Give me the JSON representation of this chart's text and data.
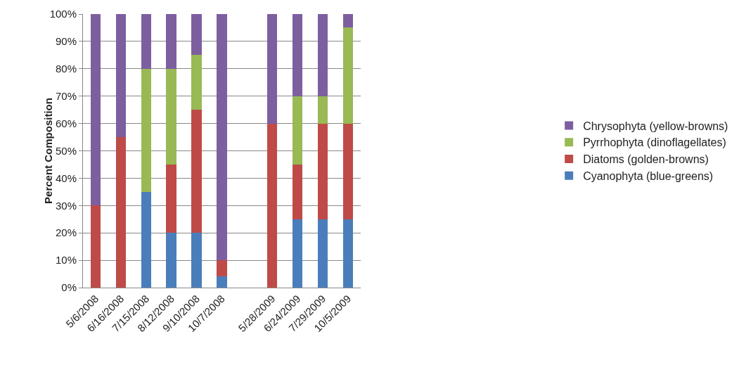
{
  "chart_data": {
    "type": "bar",
    "stacked": true,
    "ylabel": "Percent Composition",
    "categories": [
      "5/6/2008",
      "6/16/2008",
      "7/15/2008",
      "8/12/2008",
      "9/10/2008",
      "10/7/2008",
      null,
      "5/28/2009",
      "6/24/2009",
      "7/29/2009",
      "10/5/2009"
    ],
    "series": [
      {
        "name": "Cyanophyta (blue-greens)",
        "color": "#4a7ebb",
        "values": [
          0,
          0,
          35,
          20,
          20,
          4,
          null,
          0,
          25,
          25,
          25
        ]
      },
      {
        "name": "Diatoms (golden-browns)",
        "color": "#be4b48",
        "values": [
          30,
          55,
          0,
          25,
          45,
          6,
          null,
          60,
          20,
          35,
          35
        ]
      },
      {
        "name": "Pyrrhophyta (dinoflagellates)",
        "color": "#98b954",
        "values": [
          0,
          0,
          45,
          35,
          20,
          0,
          null,
          0,
          25,
          10,
          35
        ]
      },
      {
        "name": "Chrysophyta (yellow-browns)",
        "color": "#7d5fa0",
        "values": [
          70,
          45,
          20,
          20,
          15,
          90,
          null,
          40,
          30,
          30,
          5
        ]
      }
    ],
    "ylim": [
      0,
      100
    ],
    "yticks": [
      {
        "value": 0,
        "label": "0%"
      },
      {
        "value": 10,
        "label": "10%"
      },
      {
        "value": 20,
        "label": "20%"
      },
      {
        "value": 30,
        "label": "30%"
      },
      {
        "value": 40,
        "label": "40%"
      },
      {
        "value": 50,
        "label": "50%"
      },
      {
        "value": 60,
        "label": "60%"
      },
      {
        "value": 70,
        "label": "70%"
      },
      {
        "value": 80,
        "label": "80%"
      },
      {
        "value": 90,
        "label": "90%"
      },
      {
        "value": 100,
        "label": "100%"
      }
    ],
    "grid": "y",
    "legend": "right"
  }
}
